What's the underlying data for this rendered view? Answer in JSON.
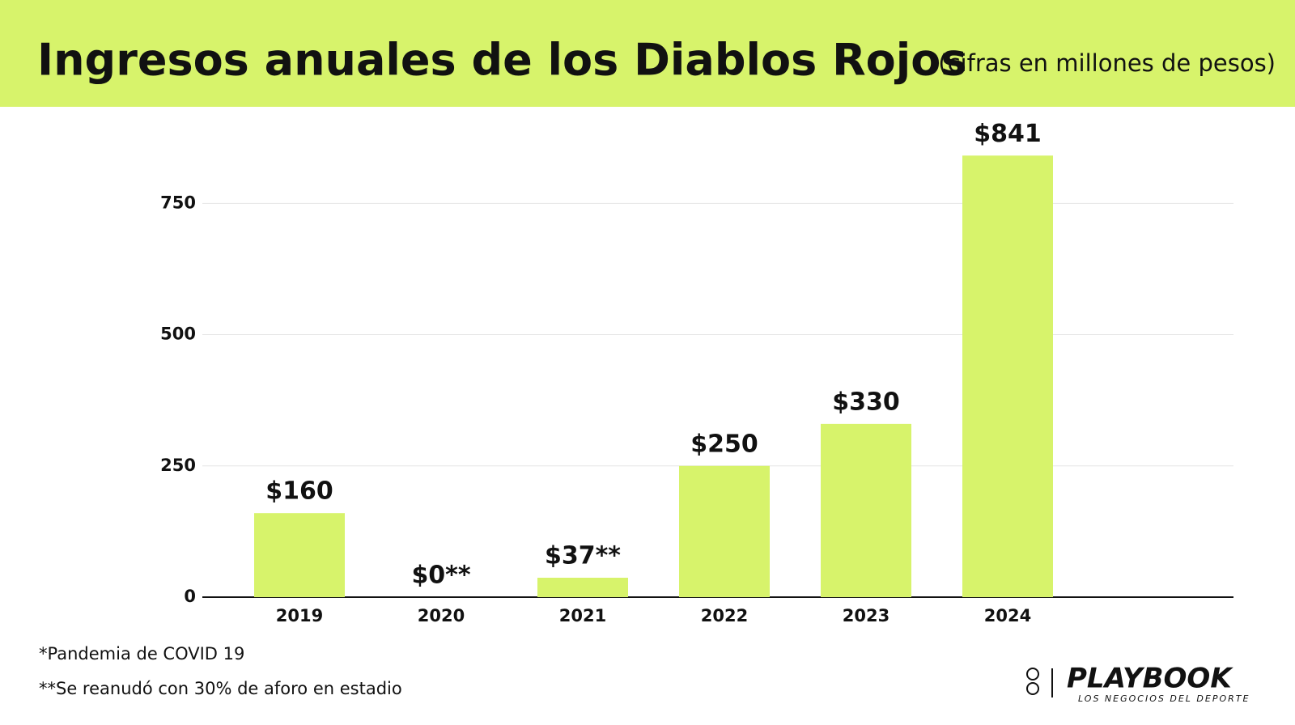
{
  "chart_data": {
    "type": "bar",
    "title": "Ingresos anuales de los Diablos Rojos",
    "subtitle": "(cifras en millones de pesos)",
    "categories": [
      "2019",
      "2020",
      "2021",
      "2022",
      "2023",
      "2024"
    ],
    "values": [
      160,
      0,
      37,
      250,
      330,
      841
    ],
    "value_labels": [
      "$160",
      "$0**",
      "$37**",
      "$250",
      "$330",
      "$841"
    ],
    "color": "#d7f36b",
    "ylim": [
      0,
      900
    ],
    "yticks": [
      0,
      250,
      500,
      750
    ],
    "grid": true,
    "footnotes": [
      "*Pandemia de COVID 19",
      "**Se reanudó con 30% de aforo en estadio"
    ]
  },
  "logo": {
    "name": "PLAYBOOK",
    "tagline": "LOS NEGOCIOS DEL DEPORTE"
  }
}
